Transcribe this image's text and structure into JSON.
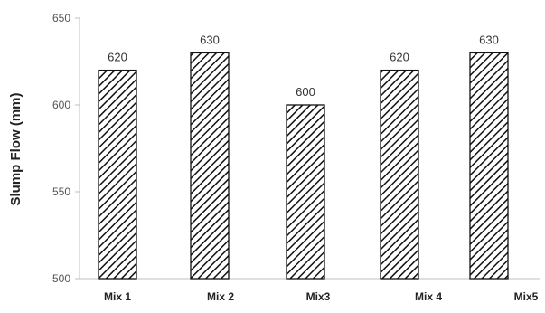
{
  "chart_data": {
    "type": "bar",
    "title": "",
    "xlabel": "",
    "ylabel": "Slump Flow (mm)",
    "categories": [
      "Mix 1",
      "Mix 2",
      "Mix3",
      "Mix 4",
      "Mix5"
    ],
    "values": [
      620,
      630,
      600,
      620,
      630
    ],
    "data_labels": [
      "620",
      "630",
      "600",
      "620",
      "630"
    ],
    "ylim": [
      500,
      650
    ],
    "yticks": [
      500,
      550,
      600,
      650
    ],
    "grid": false,
    "legend": "none",
    "bar_fill": "diagonal hatch",
    "colors": {
      "bar_stroke": "#111111",
      "hatch": "#111111",
      "axis": "#bfbfbf"
    }
  }
}
